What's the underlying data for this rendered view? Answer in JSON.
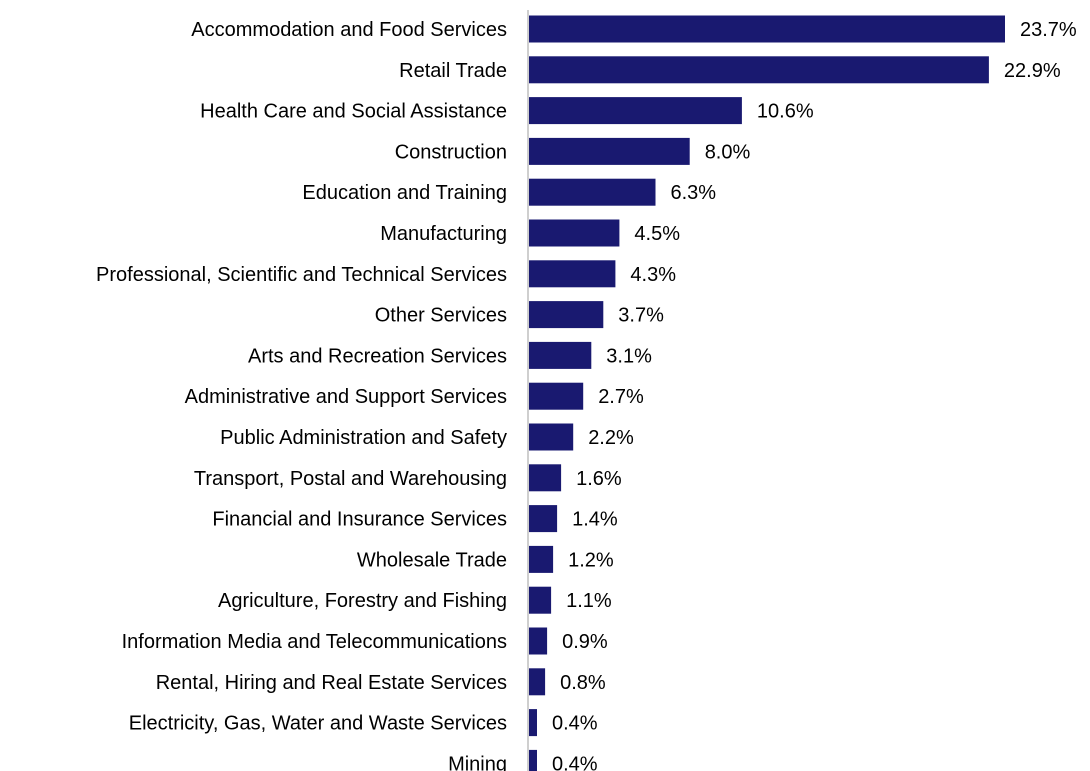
{
  "chart_data": {
    "type": "bar",
    "orientation": "horizontal",
    "categories": [
      "Accommodation and Food Services",
      "Retail Trade",
      "Health Care and Social Assistance",
      "Construction",
      "Education and Training",
      "Manufacturing",
      "Professional, Scientific and Technical Services",
      "Other Services",
      "Arts and Recreation Services",
      "Administrative and Support Services",
      "Public Administration and Safety",
      "Transport, Postal and Warehousing",
      "Financial and Insurance Services",
      "Wholesale Trade",
      "Agriculture, Forestry and Fishing",
      "Information Media and Telecommunications",
      "Rental, Hiring and Real Estate Services",
      "Electricity, Gas, Water and Waste Services",
      "Mining"
    ],
    "values": [
      23.7,
      22.9,
      10.6,
      8.0,
      6.3,
      4.5,
      4.3,
      3.7,
      3.1,
      2.7,
      2.2,
      1.6,
      1.4,
      1.2,
      1.1,
      0.9,
      0.8,
      0.4,
      0.4
    ],
    "value_labels": [
      "23.7%",
      "22.9%",
      "10.6%",
      "8.0%",
      "6.3%",
      "4.5%",
      "4.3%",
      "3.7%",
      "3.1%",
      "2.7%",
      "2.2%",
      "1.6%",
      "1.4%",
      "1.2%",
      "1.1%",
      "0.9%",
      "0.8%",
      "0.4%",
      "0.4%"
    ],
    "title": "",
    "xlabel": "",
    "ylabel": "",
    "xlim": [
      0,
      23.7
    ],
    "grid": false,
    "legend": "none",
    "bar_color": "#191970",
    "axis_color": "#bfbfbf"
  }
}
